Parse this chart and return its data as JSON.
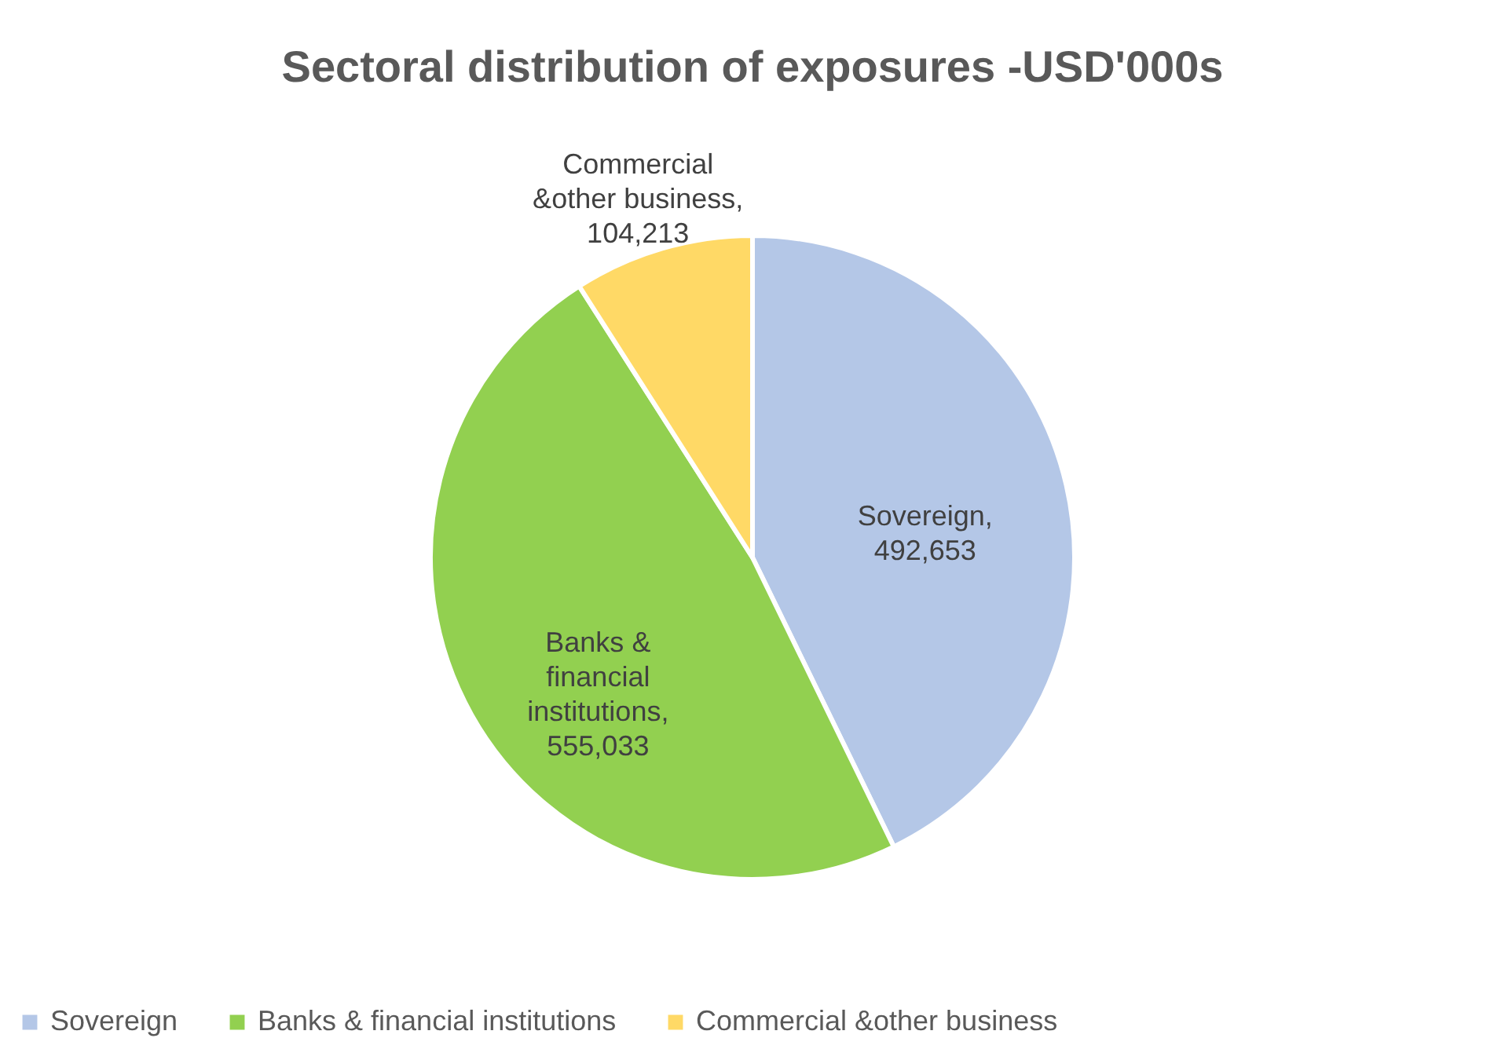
{
  "chart_data": {
    "type": "pie",
    "title": "Sectoral distribution of exposures -USD'000s",
    "categories": [
      "Sovereign",
      "Banks & financial institutions",
      "Commercial &other business"
    ],
    "values": [
      492653,
      555033,
      104213
    ],
    "colors": [
      "#b4c7e7",
      "#92d050",
      "#ffd966"
    ],
    "value_labels": [
      "Sovereign, 492,653",
      "Banks & financial institutions, 555,033",
      "Commercial &other business, 104,213"
    ],
    "legend": "bottom"
  }
}
